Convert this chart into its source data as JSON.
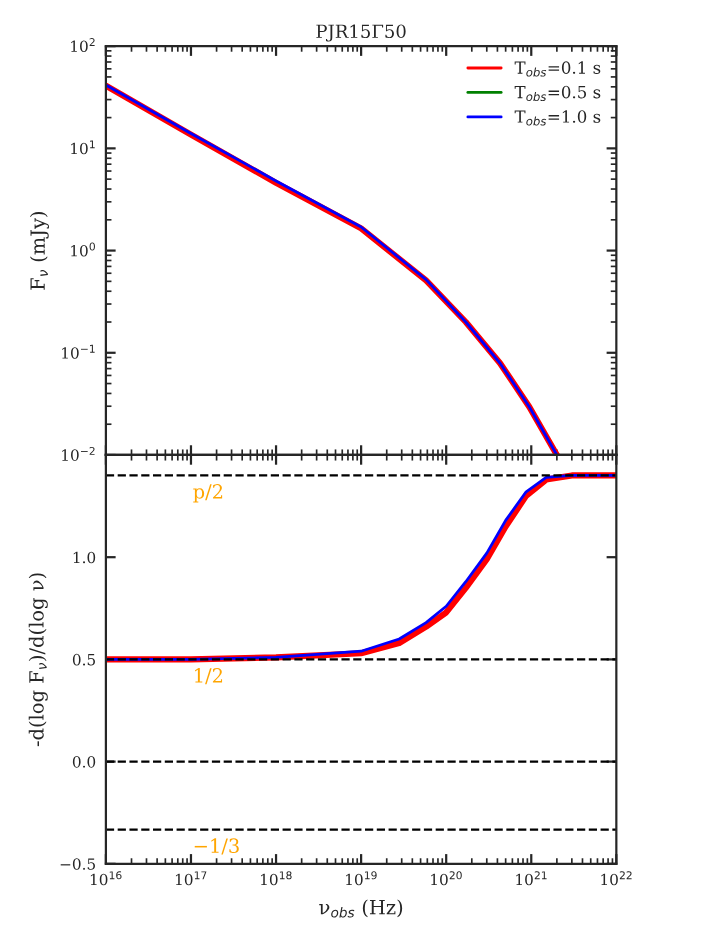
{
  "chart_data": [
    {
      "type": "line",
      "title": "PJR15Γ50",
      "ylabel": "F$_{ν}$ (mJy)",
      "log": "xy",
      "legend": "top right",
      "tick_labels": "y",
      "xlim": [
        1e+16,
        1e+22
      ],
      "xticks": [
        {
          "value": 1e+16,
          "label": null
        },
        {
          "value": 1e+17,
          "label": null
        },
        {
          "value": 1e+18,
          "label": null
        },
        {
          "value": 1e+19,
          "label": null
        },
        {
          "value": 1e+20,
          "label": null
        },
        {
          "value": 1e+21,
          "label": null
        },
        {
          "value": 1e+22,
          "label": null
        }
      ],
      "ylim": [
        0.01,
        100
      ],
      "yticks": [
        {
          "value": 0.01,
          "label": "10$^{−2}$"
        },
        {
          "value": 0.1,
          "label": "10$^{−1}$"
        },
        {
          "value": 1,
          "label": "10$^{0}$"
        },
        {
          "value": 10,
          "label": "10$^{1}$"
        },
        {
          "value": 100,
          "label": "10$^{2}$"
        }
      ],
      "x": [
        1e+16,
        1e+17,
        1e+18,
        1e+19,
        5.8e+19,
        1.7e+20,
        4.3e+20,
        9.5e+20,
        2e+21
      ],
      "series": [
        {
          "name": "T$_{obs}$=0.1 s",
          "color": "#ff0000",
          "values": [
            41,
            13.6,
            4.6,
            1.65,
            0.51,
            0.2,
            0.079,
            0.0295,
            0.01
          ]
        },
        {
          "name": "T$_{obs}$=0.5 s",
          "color": "#008000",
          "values": [
            null,
            null,
            null,
            null,
            null,
            null,
            null,
            null,
            null
          ]
        },
        {
          "name": "T$_{obs}$=1.0 s",
          "color": "#0000ff",
          "values": [
            41.7,
            14,
            4.8,
            1.7,
            0.52,
            0.2,
            0.079,
            0.0295,
            0.01
          ]
        }
      ]
    },
    {
      "type": "line",
      "xlabel": "ν$_{obs}$ (Hz)",
      "ylabel": "-d(log F$_{ν}$)/d(log ν)",
      "log": "x",
      "xlim": [
        1e+16,
        1e+22
      ],
      "xticks": [
        {
          "value": 1e+16,
          "label": "10$^{16}$"
        },
        {
          "value": 1e+17,
          "label": "10$^{17}$"
        },
        {
          "value": 1e+18,
          "label": "10$^{18}$"
        },
        {
          "value": 1e+19,
          "label": "10$^{19}$"
        },
        {
          "value": 1e+20,
          "label": "10$^{20}$"
        },
        {
          "value": 1e+21,
          "label": "10$^{21}$"
        },
        {
          "value": 1e+22,
          "label": "10$^{22}$"
        }
      ],
      "ylim": [
        -0.5,
        1.5
      ],
      "yticks": [
        {
          "value": -0.5,
          "label": "−0.5"
        },
        {
          "value": 0,
          "label": "0.0"
        },
        {
          "value": 0.5,
          "label": "0.5"
        },
        {
          "value": 1.0,
          "label": "1.0"
        }
      ],
      "x": [
        1e+16,
        1e+17,
        1e+18,
        1e+19,
        2.8e+19,
        5.8e+19,
        1e+20,
        1.7e+20,
        3e+20,
        5e+20,
        8.7e+20,
        1.5e+21,
        3e+21,
        1e+22
      ],
      "series": [
        {
          "color": "#ff0000",
          "values": [
            0.5,
            0.5,
            0.51,
            0.53,
            0.58,
            0.66,
            0.73,
            0.85,
            0.99,
            1.15,
            1.3,
            1.38,
            1.4,
            1.4
          ]
        },
        {
          "color": "#008000",
          "values": [
            null,
            null,
            null,
            null,
            null,
            null,
            null,
            null,
            null,
            null,
            null,
            null,
            null,
            null
          ]
        },
        {
          "color": "#0000ff",
          "values": [
            0.5,
            0.5,
            0.51,
            0.54,
            0.6,
            0.68,
            0.76,
            0.88,
            1.02,
            1.18,
            1.32,
            1.39,
            1.4,
            1.4
          ]
        }
      ],
      "ref_lines": [
        {
          "axis": "y",
          "value": 1.4,
          "label": "p/2",
          "line_style": "dashed",
          "color": "#000000"
        },
        {
          "axis": "y",
          "value": 0.5,
          "label": "1/2",
          "line_style": "dashed",
          "color": "#000000"
        },
        {
          "axis": "y",
          "value": 0.0,
          "line_style": "dashed",
          "color": "#000000"
        },
        {
          "axis": "y",
          "value": -0.333,
          "label": "−1/3",
          "line_style": "dashed",
          "color": "#000000"
        }
      ]
    }
  ]
}
